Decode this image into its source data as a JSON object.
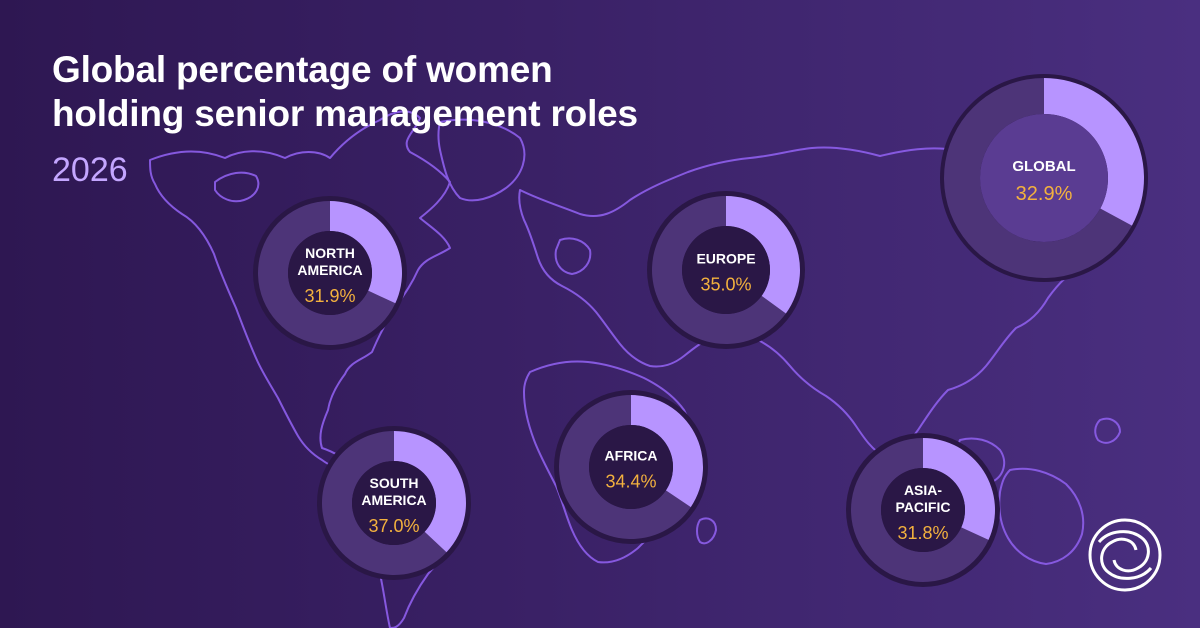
{
  "title_lines": [
    "Global percentage of women",
    "holding senior management roles"
  ],
  "subtitle": "2026",
  "colors": {
    "background_left": "#2e1752",
    "background_right": "#4a2f80",
    "map_outline": "#8a5ce6",
    "filled_segment": "#b794ff",
    "remaining_segment": "#4d3478",
    "inner_circle": "#2a1746",
    "global_inner_circle": "#5a3c92",
    "region_label": "#ffffff",
    "value_label": "#f3b13e"
  },
  "logo_icon": "circular-logo-icon",
  "chart_data": {
    "type": "pie",
    "variant": "donut",
    "title": "Global percentage of women holding senior management roles",
    "subtitle": "2026",
    "unit": "%",
    "scale_max": 100,
    "categories": [
      "North America",
      "Europe",
      "Global",
      "South America",
      "Africa",
      "Asia-Pacific"
    ],
    "values": [
      31.9,
      35.0,
      32.9,
      37.0,
      34.4,
      31.8
    ],
    "regions": [
      {
        "id": "north-america",
        "label_lines": [
          "NORTH",
          "AMERICA"
        ],
        "value": 31.9,
        "value_text": "31.9%"
      },
      {
        "id": "europe",
        "label_lines": [
          "EUROPE"
        ],
        "value": 35.0,
        "value_text": "35.0%"
      },
      {
        "id": "global",
        "label_lines": [
          "GLOBAL"
        ],
        "value": 32.9,
        "value_text": "32.9%"
      },
      {
        "id": "south-america",
        "label_lines": [
          "SOUTH",
          "AMERICA"
        ],
        "value": 37.0,
        "value_text": "37.0%"
      },
      {
        "id": "africa",
        "label_lines": [
          "AFRICA"
        ],
        "value": 34.4,
        "value_text": "34.4%"
      },
      {
        "id": "asia-pacific",
        "label_lines": [
          "ASIA-",
          "PACIFIC"
        ],
        "value": 31.8,
        "value_text": "31.8%"
      }
    ]
  }
}
